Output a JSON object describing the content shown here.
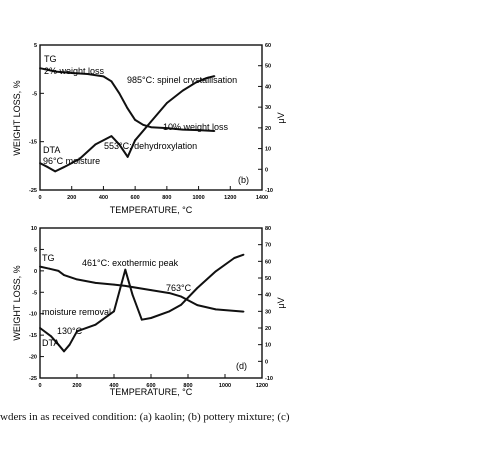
{
  "caption": "wders in as received condition: (a) kaolin; (b) pottery mixture; (c)",
  "chart_data": [
    {
      "type": "line",
      "panel": "(b)",
      "xlabel": "TEMPERATURE, °C",
      "ylabel_left": "WEIGHT LOSS, %",
      "ylabel_right": "μV",
      "xlim": [
        0,
        1400
      ],
      "ylim_left": [
        -25,
        5
      ],
      "ylim_right": [
        -10,
        60
      ],
      "x_ticks": [
        "0",
        "200",
        "400",
        "600",
        "800",
        "1000",
        "1200",
        "1400"
      ],
      "y_left_ticks": [
        "5",
        "-5",
        "-15",
        "-25"
      ],
      "y_right_ticks": [
        "60",
        "50",
        "40",
        "30",
        "20",
        "10",
        "0",
        "-10"
      ],
      "annotations": [
        "TG",
        "2% weight loss",
        "985°C: spinel crystallisation",
        "10% weight loss",
        "553°C: dehydroxylation",
        "DTA",
        "96°C moisture"
      ],
      "series": [
        {
          "name": "TG",
          "axis": "left",
          "points": [
            [
              0,
              0.2
            ],
            [
              100,
              -0.5
            ],
            [
              200,
              -0.8
            ],
            [
              300,
              -1.0
            ],
            [
              400,
              -1.5
            ],
            [
              450,
              -2.5
            ],
            [
              500,
              -5
            ],
            [
              550,
              -8
            ],
            [
              600,
              -10.5
            ],
            [
              650,
              -11.5
            ],
            [
              700,
              -12
            ],
            [
              800,
              -12.2
            ],
            [
              900,
              -12.5
            ],
            [
              1000,
              -12.6
            ],
            [
              1100,
              -12.8
            ]
          ]
        },
        {
          "name": "DTA",
          "axis": "right",
          "points": [
            [
              0,
              3
            ],
            [
              50,
              1
            ],
            [
              96,
              -1
            ],
            [
              150,
              1
            ],
            [
              250,
              5
            ],
            [
              350,
              12
            ],
            [
              450,
              16
            ],
            [
              500,
              12
            ],
            [
              553,
              6
            ],
            [
              600,
              14
            ],
            [
              700,
              23
            ],
            [
              800,
              32
            ],
            [
              900,
              38
            ],
            [
              985,
              42
            ],
            [
              1050,
              44
            ],
            [
              1100,
              45
            ]
          ]
        }
      ]
    },
    {
      "type": "line",
      "panel": "(d)",
      "xlabel": "TEMPERATURE, °C",
      "ylabel_left": "WEIGHT LOSS, %",
      "ylabel_right": "μV",
      "xlim": [
        0,
        1200
      ],
      "ylim_left": [
        -25,
        10
      ],
      "ylim_right": [
        -10,
        80
      ],
      "x_ticks": [
        "0",
        "200",
        "400",
        "600",
        "800",
        "1000",
        "1200"
      ],
      "y_left_ticks": [
        "10",
        "5",
        "0",
        "-5",
        "-10",
        "-15",
        "-20",
        "-25"
      ],
      "y_right_ticks": [
        "80",
        "70",
        "60",
        "50",
        "40",
        "30",
        "20",
        "10",
        "0",
        "-10"
      ],
      "annotations": [
        "TG",
        "461°C: exothermic peak",
        "763°C",
        "moisture removal",
        "130°C",
        "DTA"
      ],
      "series": [
        {
          "name": "TG",
          "axis": "left",
          "points": [
            [
              0,
              1
            ],
            [
              50,
              0.5
            ],
            [
              100,
              0
            ],
            [
              130,
              -1
            ],
            [
              200,
              -2
            ],
            [
              300,
              -2.8
            ],
            [
              400,
              -3.2
            ],
            [
              461,
              -3.5
            ],
            [
              600,
              -4.5
            ],
            [
              700,
              -5.2
            ],
            [
              763,
              -6
            ],
            [
              850,
              -8
            ],
            [
              950,
              -9
            ],
            [
              1100,
              -9.5
            ]
          ]
        },
        {
          "name": "DTA",
          "axis": "right",
          "points": [
            [
              0,
              20
            ],
            [
              60,
              15
            ],
            [
              100,
              10
            ],
            [
              130,
              6
            ],
            [
              160,
              10
            ],
            [
              200,
              18
            ],
            [
              300,
              22
            ],
            [
              400,
              30
            ],
            [
              461,
              55
            ],
            [
              500,
              40
            ],
            [
              550,
              25
            ],
            [
              600,
              26
            ],
            [
              700,
              30
            ],
            [
              763,
              34
            ],
            [
              850,
              44
            ],
            [
              950,
              54
            ],
            [
              1050,
              62
            ],
            [
              1100,
              64
            ]
          ]
        }
      ]
    }
  ]
}
